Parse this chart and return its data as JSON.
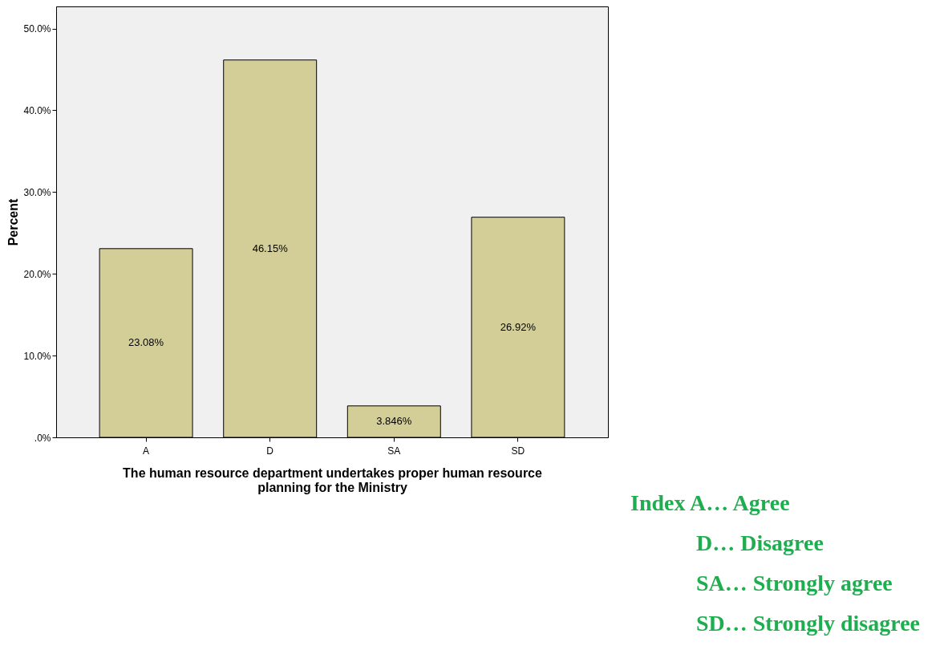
{
  "chart_data": {
    "type": "bar",
    "xlabel": "The human resource department undertakes proper human resource planning for the Ministry",
    "ylabel": "Percent",
    "categories": [
      "A",
      "D",
      "SA",
      "SD"
    ],
    "values": [
      23.08,
      46.15,
      3.846,
      26.92
    ],
    "value_labels": [
      "23.08%",
      "46.15%",
      "3.846%",
      "26.92%"
    ],
    "color": "#d3ce97",
    "ylim": [
      0,
      52.7
    ],
    "yticks": [
      {
        "value": 0,
        "label": ".0%"
      },
      {
        "value": 10,
        "label": "10.0%"
      },
      {
        "value": 20,
        "label": "20.0%"
      },
      {
        "value": 30,
        "label": "30.0%"
      },
      {
        "value": 40,
        "label": "40.0%"
      },
      {
        "value": 50,
        "label": "50.0%"
      }
    ],
    "grid": false,
    "annotations": [
      "Index A… Agree",
      "D… Disagree",
      "SA… Strongly agree",
      "SD… Strongly disagree"
    ]
  }
}
